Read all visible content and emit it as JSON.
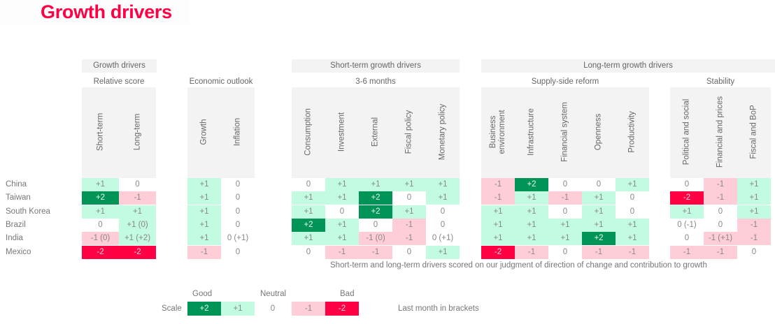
{
  "title": "Growth drivers",
  "groups": [
    {
      "label": "Growth drivers",
      "sub": "Relative score",
      "columns": [
        "Short-term",
        "Long-term"
      ]
    },
    {
      "label": "",
      "sub": "Economic outlook",
      "columns": [
        "Growth",
        "Inflation"
      ]
    },
    {
      "label": "Short-term growth drivers",
      "sub": "3-6 months",
      "columns": [
        "Consumption",
        "Investment",
        "External",
        "Fiscal policy",
        "Monetary policy"
      ]
    },
    {
      "label": "Long-term growth drivers",
      "sub": "Supply-side reform",
      "columns": [
        "Business environment",
        "Infrastructure",
        "Financial system",
        "Openness",
        "Productivity"
      ]
    },
    {
      "label": "",
      "sub": "Stability",
      "columns": [
        "Political and social",
        "Financial and prices",
        "Fiscal and BoP"
      ]
    }
  ],
  "rows": [
    {
      "country": "China",
      "cells": [
        [
          "+1",
          1
        ],
        [
          "0",
          0
        ],
        [
          "+1",
          1
        ],
        [
          "0",
          0
        ],
        [
          "0",
          0
        ],
        [
          "+1",
          1
        ],
        [
          "+1",
          1
        ],
        [
          "+1",
          1
        ],
        [
          "+1",
          1
        ],
        [
          "-1",
          -1
        ],
        [
          "+2",
          2
        ],
        [
          "0",
          0
        ],
        [
          "0",
          0
        ],
        [
          "+1",
          1
        ],
        [
          "0",
          0
        ],
        [
          "-1",
          -1
        ],
        [
          "+1",
          1
        ]
      ]
    },
    {
      "country": "Taiwan",
      "cells": [
        [
          "+2",
          2
        ],
        [
          "-1",
          -1
        ],
        [
          "+1",
          1
        ],
        [
          "0",
          0
        ],
        [
          "+1",
          1
        ],
        [
          "+1",
          1
        ],
        [
          "+2",
          2
        ],
        [
          "0",
          0
        ],
        [
          "+1",
          1
        ],
        [
          "-1",
          -1
        ],
        [
          "+1",
          1
        ],
        [
          "-1",
          -1
        ],
        [
          "+1",
          1
        ],
        [
          "0",
          0
        ],
        [
          "-2",
          -2
        ],
        [
          "-1",
          -1
        ],
        [
          "+1",
          1
        ]
      ]
    },
    {
      "country": "South Korea",
      "cells": [
        [
          "+1",
          1
        ],
        [
          "+1",
          1
        ],
        [
          "+1",
          1
        ],
        [
          "0",
          0
        ],
        [
          "+1",
          1
        ],
        [
          "0",
          0
        ],
        [
          "+2",
          2
        ],
        [
          "+1",
          1
        ],
        [
          "0",
          0
        ],
        [
          "+1",
          1
        ],
        [
          "+1",
          1
        ],
        [
          "0",
          0
        ],
        [
          "+1",
          1
        ],
        [
          "0",
          0
        ],
        [
          "+1",
          1
        ],
        [
          "0",
          0
        ],
        [
          "+1",
          1
        ]
      ]
    },
    {
      "country": "Brazil",
      "cells": [
        [
          "0",
          0
        ],
        [
          "+1 (0)",
          1
        ],
        [
          "+1",
          1
        ],
        [
          "0",
          0
        ],
        [
          "+2",
          2
        ],
        [
          "+1",
          1
        ],
        [
          "0",
          0
        ],
        [
          "-1",
          -1
        ],
        [
          "0",
          0
        ],
        [
          "+1",
          1
        ],
        [
          "+1",
          1
        ],
        [
          "+1",
          1
        ],
        [
          "+1",
          1
        ],
        [
          "+1",
          1
        ],
        [
          "0 (-1)",
          0
        ],
        [
          "0",
          0
        ],
        [
          "-1",
          -1
        ]
      ]
    },
    {
      "country": "India",
      "cells": [
        [
          "-1 (0)",
          -1
        ],
        [
          "+1 (+2)",
          1
        ],
        [
          "+1",
          1
        ],
        [
          "0 (+1)",
          0
        ],
        [
          "+1",
          1
        ],
        [
          "+1",
          1
        ],
        [
          "-1 (0)",
          -1
        ],
        [
          "-1",
          -1
        ],
        [
          "0 (+1)",
          0
        ],
        [
          "+1",
          1
        ],
        [
          "+1",
          1
        ],
        [
          "+1",
          1
        ],
        [
          "+2",
          2
        ],
        [
          "+1",
          1
        ],
        [
          "0",
          0
        ],
        [
          "-1 (+1)",
          -1
        ],
        [
          "-1",
          -1
        ]
      ]
    },
    {
      "country": "Mexico",
      "cells": [
        [
          "-2",
          -2
        ],
        [
          "-2",
          -2
        ],
        [
          "-1",
          -1
        ],
        [
          "0",
          0
        ],
        [
          "0",
          0
        ],
        [
          "-1",
          -1
        ],
        [
          "-1",
          -1
        ],
        [
          "0",
          0
        ],
        [
          "+1",
          1
        ],
        [
          "-2",
          -2
        ],
        [
          "-1",
          -1
        ],
        [
          "0",
          0
        ],
        [
          "-1",
          -1
        ],
        [
          "-1",
          -1
        ],
        [
          "-1",
          -1
        ],
        [
          "-1",
          -1
        ],
        [
          "0",
          0
        ]
      ]
    }
  ],
  "note": "Short-term and long-term drivers scored on our judgment of direction of change and contribution to growth",
  "legend": {
    "scale_label": "Scale",
    "good_label": "Good",
    "neutral_label": "Neutral",
    "bad_label": "Bad",
    "items": [
      {
        "label": "+2",
        "level": 2
      },
      {
        "label": "+1",
        "level": 1
      },
      {
        "label": "0",
        "level": 0
      },
      {
        "label": "-1",
        "level": -1
      },
      {
        "label": "-2",
        "level": -2
      }
    ],
    "brackets_note": "Last month in brackets"
  },
  "colors": {
    "title": "#ff0044",
    "strong_good": "#009557",
    "good": "#c3fae2",
    "bad": "#fecdd8",
    "strong_bad": "#ff0044",
    "header_bg": "#f3f3f3"
  }
}
